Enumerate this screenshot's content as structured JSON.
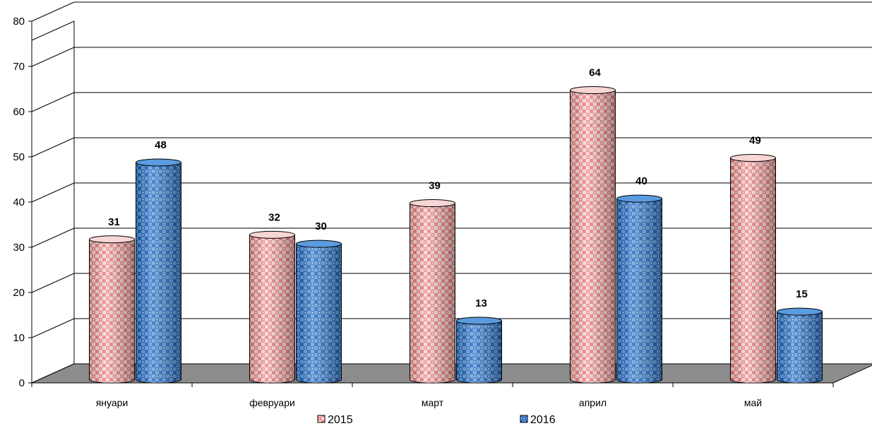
{
  "chart_data": {
    "type": "bar",
    "categories": [
      "януари",
      "февруари",
      "март",
      "април",
      "май"
    ],
    "series": [
      {
        "name": "2015",
        "values": [
          31,
          32,
          39,
          64,
          49
        ],
        "color": "#f07878",
        "pattern_bg": "#f8d6d6"
      },
      {
        "name": "2016",
        "values": [
          48,
          30,
          13,
          40,
          15
        ],
        "color": "#1a5fb8",
        "pattern_bg": "#5b9be0"
      }
    ],
    "ylim": [
      0,
      80
    ],
    "yticks": [
      0,
      10,
      20,
      30,
      40,
      50,
      60,
      70,
      80
    ],
    "grid": true,
    "legend_position": "bottom",
    "style": "3d-cylinder",
    "floor_color": "#8c8c8c"
  }
}
